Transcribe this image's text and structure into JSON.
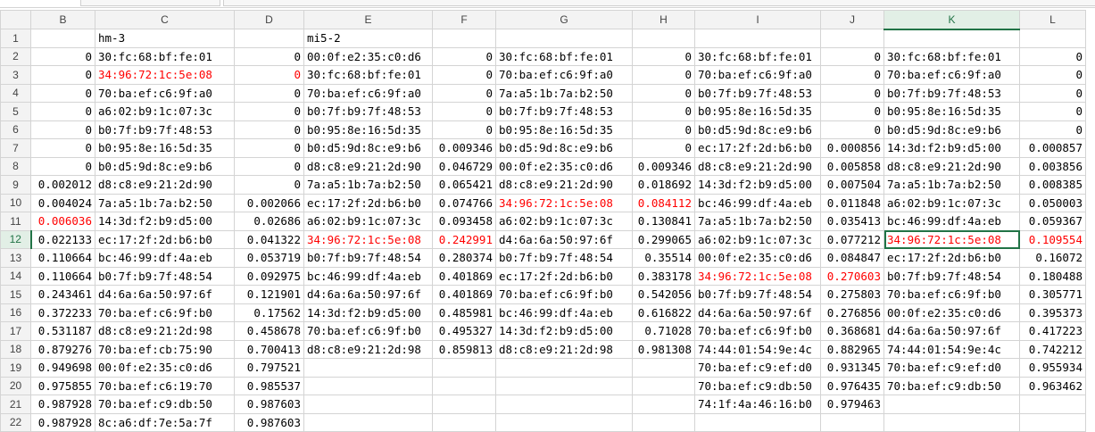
{
  "columns": [
    "B",
    "C",
    "D",
    "E",
    "F",
    "G",
    "H",
    "I",
    "J",
    "K",
    "L"
  ],
  "selected_column": "K",
  "selected_row": 12,
  "colors": {
    "accent": "#217346",
    "highlight_text": "#ff0000",
    "grid": "#d4d4d4"
  },
  "rows": [
    {
      "n": "1",
      "cells": [
        {
          "v": "",
          "t": "num"
        },
        {
          "v": "hm-3",
          "t": "txt"
        },
        {
          "v": "",
          "t": "num"
        },
        {
          "v": "mi5-2",
          "t": "txt"
        },
        {
          "v": "",
          "t": "num"
        },
        {
          "v": "",
          "t": "txt"
        },
        {
          "v": "",
          "t": "num"
        },
        {
          "v": "",
          "t": "txt"
        },
        {
          "v": "",
          "t": "num"
        },
        {
          "v": "",
          "t": "txt"
        },
        {
          "v": "",
          "t": "num"
        }
      ]
    },
    {
      "n": "2",
      "cells": [
        {
          "v": "0",
          "t": "num"
        },
        {
          "v": "30:fc:68:bf:fe:01",
          "t": "txt"
        },
        {
          "v": "0",
          "t": "num"
        },
        {
          "v": "00:0f:e2:35:c0:d6",
          "t": "txt"
        },
        {
          "v": "0",
          "t": "num"
        },
        {
          "v": "30:fc:68:bf:fe:01",
          "t": "txt"
        },
        {
          "v": "0",
          "t": "num"
        },
        {
          "v": "30:fc:68:bf:fe:01",
          "t": "txt"
        },
        {
          "v": "0",
          "t": "num"
        },
        {
          "v": "30:fc:68:bf:fe:01",
          "t": "txt"
        },
        {
          "v": "0",
          "t": "num"
        }
      ]
    },
    {
      "n": "3",
      "cells": [
        {
          "v": "0",
          "t": "num"
        },
        {
          "v": "34:96:72:1c:5e:08",
          "t": "txt",
          "red": true
        },
        {
          "v": "0",
          "t": "num",
          "red": true
        },
        {
          "v": "30:fc:68:bf:fe:01",
          "t": "txt"
        },
        {
          "v": "0",
          "t": "num"
        },
        {
          "v": "70:ba:ef:c6:9f:a0",
          "t": "txt"
        },
        {
          "v": "0",
          "t": "num"
        },
        {
          "v": "70:ba:ef:c6:9f:a0",
          "t": "txt"
        },
        {
          "v": "0",
          "t": "num"
        },
        {
          "v": "70:ba:ef:c6:9f:a0",
          "t": "txt"
        },
        {
          "v": "0",
          "t": "num"
        }
      ]
    },
    {
      "n": "4",
      "cells": [
        {
          "v": "0",
          "t": "num"
        },
        {
          "v": "70:ba:ef:c6:9f:a0",
          "t": "txt"
        },
        {
          "v": "0",
          "t": "num"
        },
        {
          "v": "70:ba:ef:c6:9f:a0",
          "t": "txt"
        },
        {
          "v": "0",
          "t": "num"
        },
        {
          "v": "7a:a5:1b:7a:b2:50",
          "t": "txt"
        },
        {
          "v": "0",
          "t": "num"
        },
        {
          "v": "b0:7f:b9:7f:48:53",
          "t": "txt"
        },
        {
          "v": "0",
          "t": "num"
        },
        {
          "v": "b0:7f:b9:7f:48:53",
          "t": "txt"
        },
        {
          "v": "0",
          "t": "num"
        }
      ]
    },
    {
      "n": "5",
      "cells": [
        {
          "v": "0",
          "t": "num"
        },
        {
          "v": "a6:02:b9:1c:07:3c",
          "t": "txt"
        },
        {
          "v": "0",
          "t": "num"
        },
        {
          "v": "b0:7f:b9:7f:48:53",
          "t": "txt"
        },
        {
          "v": "0",
          "t": "num"
        },
        {
          "v": "b0:7f:b9:7f:48:53",
          "t": "txt"
        },
        {
          "v": "0",
          "t": "num"
        },
        {
          "v": "b0:95:8e:16:5d:35",
          "t": "txt"
        },
        {
          "v": "0",
          "t": "num"
        },
        {
          "v": "b0:95:8e:16:5d:35",
          "t": "txt"
        },
        {
          "v": "0",
          "t": "num"
        }
      ]
    },
    {
      "n": "6",
      "cells": [
        {
          "v": "0",
          "t": "num"
        },
        {
          "v": "b0:7f:b9:7f:48:53",
          "t": "txt"
        },
        {
          "v": "0",
          "t": "num"
        },
        {
          "v": "b0:95:8e:16:5d:35",
          "t": "txt"
        },
        {
          "v": "0",
          "t": "num"
        },
        {
          "v": "b0:95:8e:16:5d:35",
          "t": "txt"
        },
        {
          "v": "0",
          "t": "num"
        },
        {
          "v": "b0:d5:9d:8c:e9:b6",
          "t": "txt"
        },
        {
          "v": "0",
          "t": "num"
        },
        {
          "v": "b0:d5:9d:8c:e9:b6",
          "t": "txt"
        },
        {
          "v": "0",
          "t": "num"
        }
      ]
    },
    {
      "n": "7",
      "cells": [
        {
          "v": "0",
          "t": "num"
        },
        {
          "v": "b0:95:8e:16:5d:35",
          "t": "txt"
        },
        {
          "v": "0",
          "t": "num"
        },
        {
          "v": "b0:d5:9d:8c:e9:b6",
          "t": "txt"
        },
        {
          "v": "0.009346",
          "t": "num"
        },
        {
          "v": "b0:d5:9d:8c:e9:b6",
          "t": "txt"
        },
        {
          "v": "0",
          "t": "num"
        },
        {
          "v": "ec:17:2f:2d:b6:b0",
          "t": "txt"
        },
        {
          "v": "0.000856",
          "t": "num"
        },
        {
          "v": "14:3d:f2:b9:d5:00",
          "t": "txt"
        },
        {
          "v": "0.000857",
          "t": "num"
        }
      ]
    },
    {
      "n": "8",
      "cells": [
        {
          "v": "0",
          "t": "num"
        },
        {
          "v": "b0:d5:9d:8c:e9:b6",
          "t": "txt"
        },
        {
          "v": "0",
          "t": "num"
        },
        {
          "v": "d8:c8:e9:21:2d:90",
          "t": "txt"
        },
        {
          "v": "0.046729",
          "t": "num"
        },
        {
          "v": "00:0f:e2:35:c0:d6",
          "t": "txt"
        },
        {
          "v": "0.009346",
          "t": "num"
        },
        {
          "v": "d8:c8:e9:21:2d:90",
          "t": "txt"
        },
        {
          "v": "0.005858",
          "t": "num"
        },
        {
          "v": "d8:c8:e9:21:2d:90",
          "t": "txt"
        },
        {
          "v": "0.003856",
          "t": "num"
        }
      ]
    },
    {
      "n": "9",
      "cells": [
        {
          "v": "0.002012",
          "t": "num"
        },
        {
          "v": "d8:c8:e9:21:2d:90",
          "t": "txt"
        },
        {
          "v": "0",
          "t": "num"
        },
        {
          "v": "7a:a5:1b:7a:b2:50",
          "t": "txt"
        },
        {
          "v": "0.065421",
          "t": "num"
        },
        {
          "v": "d8:c8:e9:21:2d:90",
          "t": "txt"
        },
        {
          "v": "0.018692",
          "t": "num"
        },
        {
          "v": "14:3d:f2:b9:d5:00",
          "t": "txt"
        },
        {
          "v": "0.007504",
          "t": "num"
        },
        {
          "v": "7a:a5:1b:7a:b2:50",
          "t": "txt"
        },
        {
          "v": "0.008385",
          "t": "num"
        }
      ]
    },
    {
      "n": "10",
      "cells": [
        {
          "v": "0.004024",
          "t": "num"
        },
        {
          "v": "7a:a5:1b:7a:b2:50",
          "t": "txt"
        },
        {
          "v": "0.002066",
          "t": "num"
        },
        {
          "v": "ec:17:2f:2d:b6:b0",
          "t": "txt"
        },
        {
          "v": "0.074766",
          "t": "num"
        },
        {
          "v": "34:96:72:1c:5e:08",
          "t": "txt",
          "red": true
        },
        {
          "v": "0.084112",
          "t": "num",
          "red": true
        },
        {
          "v": "bc:46:99:df:4a:eb",
          "t": "txt"
        },
        {
          "v": "0.011848",
          "t": "num"
        },
        {
          "v": "a6:02:b9:1c:07:3c",
          "t": "txt"
        },
        {
          "v": "0.050003",
          "t": "num"
        }
      ]
    },
    {
      "n": "11",
      "cells": [
        {
          "v": "0.006036",
          "t": "num",
          "red": true
        },
        {
          "v": "14:3d:f2:b9:d5:00",
          "t": "txt"
        },
        {
          "v": "0.02686",
          "t": "num"
        },
        {
          "v": "a6:02:b9:1c:07:3c",
          "t": "txt"
        },
        {
          "v": "0.093458",
          "t": "num"
        },
        {
          "v": "a6:02:b9:1c:07:3c",
          "t": "txt"
        },
        {
          "v": "0.130841",
          "t": "num"
        },
        {
          "v": "7a:a5:1b:7a:b2:50",
          "t": "txt"
        },
        {
          "v": "0.035413",
          "t": "num"
        },
        {
          "v": "bc:46:99:df:4a:eb",
          "t": "txt"
        },
        {
          "v": "0.059367",
          "t": "num"
        }
      ]
    },
    {
      "n": "12",
      "cells": [
        {
          "v": "0.022133",
          "t": "num"
        },
        {
          "v": "ec:17:2f:2d:b6:b0",
          "t": "txt"
        },
        {
          "v": "0.041322",
          "t": "num"
        },
        {
          "v": "34:96:72:1c:5e:08",
          "t": "txt",
          "red": true
        },
        {
          "v": "0.242991",
          "t": "num",
          "red": true
        },
        {
          "v": "d4:6a:6a:50:97:6f",
          "t": "txt"
        },
        {
          "v": "0.299065",
          "t": "num"
        },
        {
          "v": "a6:02:b9:1c:07:3c",
          "t": "txt"
        },
        {
          "v": "0.077212",
          "t": "num"
        },
        {
          "v": "34:96:72:1c:5e:08",
          "t": "txt",
          "red": true,
          "active": true
        },
        {
          "v": "0.109554",
          "t": "num",
          "red": true
        }
      ]
    },
    {
      "n": "13",
      "cells": [
        {
          "v": "0.110664",
          "t": "num"
        },
        {
          "v": "bc:46:99:df:4a:eb",
          "t": "txt"
        },
        {
          "v": "0.053719",
          "t": "num"
        },
        {
          "v": "b0:7f:b9:7f:48:54",
          "t": "txt"
        },
        {
          "v": "0.280374",
          "t": "num"
        },
        {
          "v": "b0:7f:b9:7f:48:54",
          "t": "txt"
        },
        {
          "v": "0.35514",
          "t": "num"
        },
        {
          "v": "00:0f:e2:35:c0:d6",
          "t": "txt"
        },
        {
          "v": "0.084847",
          "t": "num"
        },
        {
          "v": "ec:17:2f:2d:b6:b0",
          "t": "txt"
        },
        {
          "v": "0.16072",
          "t": "num"
        }
      ]
    },
    {
      "n": "14",
      "cells": [
        {
          "v": "0.110664",
          "t": "num"
        },
        {
          "v": "b0:7f:b9:7f:48:54",
          "t": "txt"
        },
        {
          "v": "0.092975",
          "t": "num"
        },
        {
          "v": "bc:46:99:df:4a:eb",
          "t": "txt"
        },
        {
          "v": "0.401869",
          "t": "num"
        },
        {
          "v": "ec:17:2f:2d:b6:b0",
          "t": "txt"
        },
        {
          "v": "0.383178",
          "t": "num"
        },
        {
          "v": "34:96:72:1c:5e:08",
          "t": "txt",
          "red": true
        },
        {
          "v": "0.270603",
          "t": "num",
          "red": true
        },
        {
          "v": "b0:7f:b9:7f:48:54",
          "t": "txt"
        },
        {
          "v": "0.180488",
          "t": "num"
        }
      ]
    },
    {
      "n": "15",
      "cells": [
        {
          "v": "0.243461",
          "t": "num"
        },
        {
          "v": "d4:6a:6a:50:97:6f",
          "t": "txt"
        },
        {
          "v": "0.121901",
          "t": "num"
        },
        {
          "v": "d4:6a:6a:50:97:6f",
          "t": "txt"
        },
        {
          "v": "0.401869",
          "t": "num"
        },
        {
          "v": "70:ba:ef:c6:9f:b0",
          "t": "txt"
        },
        {
          "v": "0.542056",
          "t": "num"
        },
        {
          "v": "b0:7f:b9:7f:48:54",
          "t": "txt"
        },
        {
          "v": "0.275803",
          "t": "num"
        },
        {
          "v": "70:ba:ef:c6:9f:b0",
          "t": "txt"
        },
        {
          "v": "0.305771",
          "t": "num"
        }
      ]
    },
    {
      "n": "16",
      "cells": [
        {
          "v": "0.372233",
          "t": "num"
        },
        {
          "v": "70:ba:ef:c6:9f:b0",
          "t": "txt"
        },
        {
          "v": "0.17562",
          "t": "num"
        },
        {
          "v": "14:3d:f2:b9:d5:00",
          "t": "txt"
        },
        {
          "v": "0.485981",
          "t": "num"
        },
        {
          "v": "bc:46:99:df:4a:eb",
          "t": "txt"
        },
        {
          "v": "0.616822",
          "t": "num"
        },
        {
          "v": "d4:6a:6a:50:97:6f",
          "t": "txt"
        },
        {
          "v": "0.276856",
          "t": "num"
        },
        {
          "v": "00:0f:e2:35:c0:d6",
          "t": "txt"
        },
        {
          "v": "0.395373",
          "t": "num"
        }
      ]
    },
    {
      "n": "17",
      "cells": [
        {
          "v": "0.531187",
          "t": "num"
        },
        {
          "v": "d8:c8:e9:21:2d:98",
          "t": "txt"
        },
        {
          "v": "0.458678",
          "t": "num"
        },
        {
          "v": "70:ba:ef:c6:9f:b0",
          "t": "txt"
        },
        {
          "v": "0.495327",
          "t": "num"
        },
        {
          "v": "14:3d:f2:b9:d5:00",
          "t": "txt"
        },
        {
          "v": "0.71028",
          "t": "num"
        },
        {
          "v": "70:ba:ef:c6:9f:b0",
          "t": "txt"
        },
        {
          "v": "0.368681",
          "t": "num"
        },
        {
          "v": "d4:6a:6a:50:97:6f",
          "t": "txt"
        },
        {
          "v": "0.417223",
          "t": "num"
        }
      ]
    },
    {
      "n": "18",
      "cells": [
        {
          "v": "0.879276",
          "t": "num"
        },
        {
          "v": "70:ba:ef:cb:75:90",
          "t": "txt"
        },
        {
          "v": "0.700413",
          "t": "num"
        },
        {
          "v": "d8:c8:e9:21:2d:98",
          "t": "txt"
        },
        {
          "v": "0.859813",
          "t": "num"
        },
        {
          "v": "d8:c8:e9:21:2d:98",
          "t": "txt"
        },
        {
          "v": "0.981308",
          "t": "num"
        },
        {
          "v": "74:44:01:54:9e:4c",
          "t": "txt"
        },
        {
          "v": "0.882965",
          "t": "num"
        },
        {
          "v": "74:44:01:54:9e:4c",
          "t": "txt"
        },
        {
          "v": "0.742212",
          "t": "num"
        }
      ]
    },
    {
      "n": "19",
      "cells": [
        {
          "v": "0.949698",
          "t": "num"
        },
        {
          "v": "00:0f:e2:35:c0:d6",
          "t": "txt"
        },
        {
          "v": "0.797521",
          "t": "num"
        },
        {
          "v": "",
          "t": "txt"
        },
        {
          "v": "",
          "t": "num"
        },
        {
          "v": "",
          "t": "txt"
        },
        {
          "v": "",
          "t": "num"
        },
        {
          "v": "70:ba:ef:c9:ef:d0",
          "t": "txt"
        },
        {
          "v": "0.931345",
          "t": "num"
        },
        {
          "v": "70:ba:ef:c9:ef:d0",
          "t": "txt"
        },
        {
          "v": "0.955934",
          "t": "num"
        }
      ]
    },
    {
      "n": "20",
      "cells": [
        {
          "v": "0.975855",
          "t": "num"
        },
        {
          "v": "70:ba:ef:c6:19:70",
          "t": "txt"
        },
        {
          "v": "0.985537",
          "t": "num"
        },
        {
          "v": "",
          "t": "txt"
        },
        {
          "v": "",
          "t": "num"
        },
        {
          "v": "",
          "t": "txt"
        },
        {
          "v": "",
          "t": "num"
        },
        {
          "v": "70:ba:ef:c9:db:50",
          "t": "txt"
        },
        {
          "v": "0.976435",
          "t": "num"
        },
        {
          "v": "70:ba:ef:c9:db:50",
          "t": "txt"
        },
        {
          "v": "0.963462",
          "t": "num"
        }
      ]
    },
    {
      "n": "21",
      "cells": [
        {
          "v": "0.987928",
          "t": "num"
        },
        {
          "v": "70:ba:ef:c9:db:50",
          "t": "txt"
        },
        {
          "v": "0.987603",
          "t": "num"
        },
        {
          "v": "",
          "t": "txt"
        },
        {
          "v": "",
          "t": "num"
        },
        {
          "v": "",
          "t": "txt"
        },
        {
          "v": "",
          "t": "num"
        },
        {
          "v": "74:1f:4a:46:16:b0",
          "t": "txt"
        },
        {
          "v": "0.979463",
          "t": "num"
        },
        {
          "v": "",
          "t": "txt"
        },
        {
          "v": "",
          "t": "num"
        }
      ]
    },
    {
      "n": "22",
      "cells": [
        {
          "v": "0.987928",
          "t": "num"
        },
        {
          "v": "8c:a6:df:7e:5a:7f",
          "t": "txt"
        },
        {
          "v": "0.987603",
          "t": "num"
        },
        {
          "v": "",
          "t": "txt"
        },
        {
          "v": "",
          "t": "num"
        },
        {
          "v": "",
          "t": "txt"
        },
        {
          "v": "",
          "t": "num"
        },
        {
          "v": "",
          "t": "txt"
        },
        {
          "v": "",
          "t": "num"
        },
        {
          "v": "",
          "t": "txt"
        },
        {
          "v": "",
          "t": "num"
        }
      ]
    }
  ]
}
